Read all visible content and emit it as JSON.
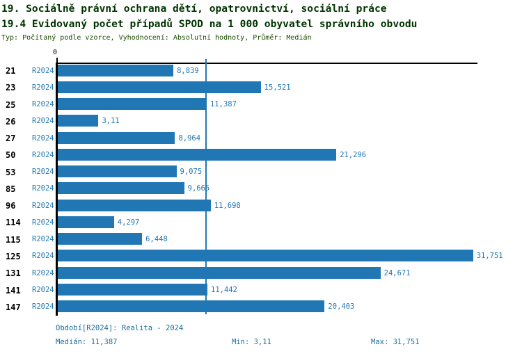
{
  "header": {
    "title_line1": "19. Sociálně právní ochrana dětí, opatrovnictví, sociální práce",
    "title_line2": "19.4 Evidovaný počet případů SPOD na 1 000 obyvatel správního obvodu",
    "meta_line": "Typ: Počítaný podle vzorce, Vyhodnocení: Absolutní hodnoty, Průměr: Medián"
  },
  "chart_data": {
    "type": "bar",
    "orientation": "horizontal",
    "series_label": "R2024",
    "categories": [
      "21",
      "23",
      "25",
      "26",
      "27",
      "50",
      "53",
      "85",
      "96",
      "114",
      "115",
      "125",
      "131",
      "141",
      "147"
    ],
    "values": [
      8.839,
      15.521,
      11.387,
      3.11,
      8.964,
      21.296,
      9.075,
      9.665,
      11.698,
      4.297,
      6.448,
      31.751,
      24.671,
      11.442,
      20.403
    ],
    "value_labels": [
      "8,839",
      "15,521",
      "11,387",
      "3,11",
      "8,964",
      "21,296",
      "9,075",
      "9,665",
      "11,698",
      "4,297",
      "6,448",
      "31,751",
      "24,671",
      "11,442",
      "20,403"
    ],
    "xlim": [
      0,
      32.14
    ],
    "x_axis_zero_label": "0",
    "median_value": 11.387,
    "bar_color": "#2077b4",
    "median_line_color": "#2077b4",
    "grid": false,
    "legend_position": "none"
  },
  "footer": {
    "period_label": "Období[R2024]: Realita - 2024",
    "median_label": "Medián: 11,387",
    "min_label": "Min: 3,11",
    "max_label": "Max: 31,751"
  }
}
